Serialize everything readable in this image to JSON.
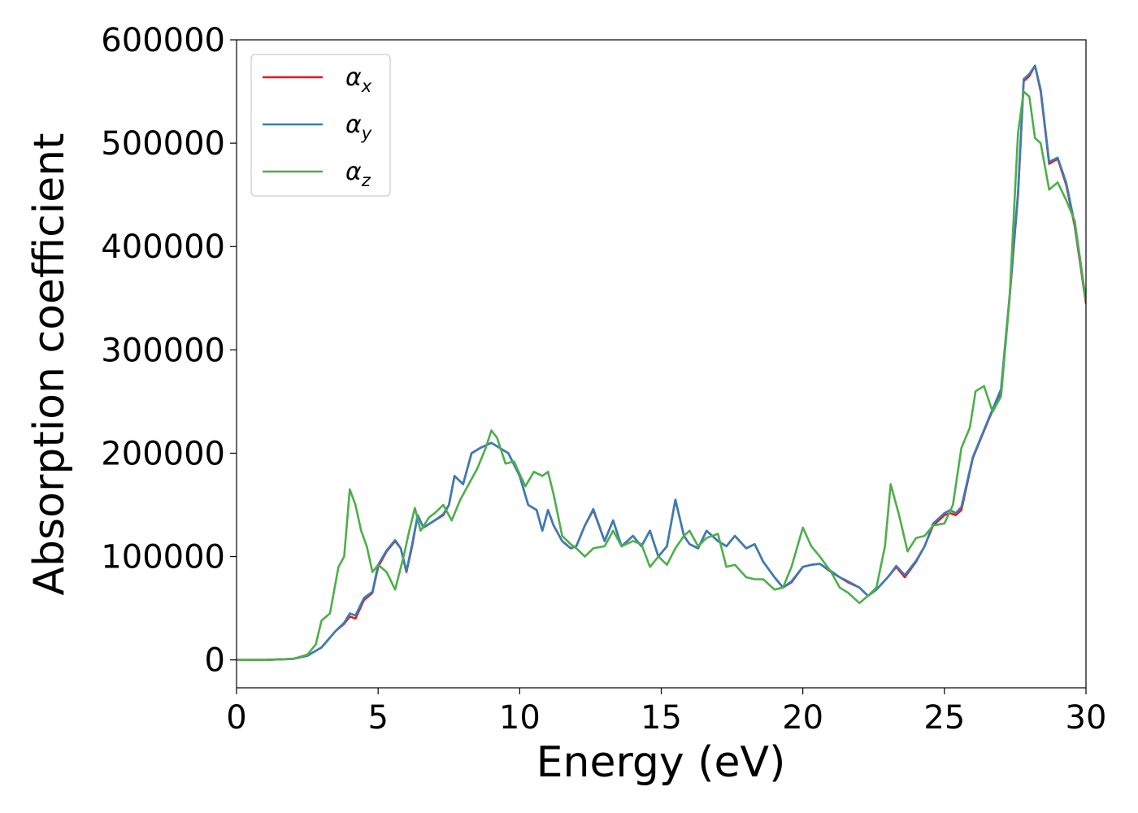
{
  "chart_data": {
    "type": "line",
    "title": "",
    "xlabel": "Energy (eV)",
    "ylabel": "Absorption coefficient",
    "xlim": [
      0,
      30
    ],
    "ylim": [
      -27000,
      600000
    ],
    "xticks": [
      0,
      5,
      10,
      15,
      20,
      25,
      30
    ],
    "yticks": [
      0,
      100000,
      200000,
      300000,
      400000,
      500000,
      600000
    ],
    "grid": false,
    "legend_position": "top-left",
    "series": [
      {
        "name": "α",
        "subscript": "x",
        "color": "#e41a1c",
        "x": [
          0,
          1,
          2,
          2.5,
          3,
          3.5,
          3.8,
          4.0,
          4.2,
          4.5,
          4.8,
          5.0,
          5.3,
          5.6,
          5.8,
          6.0,
          6.2,
          6.4,
          6.6,
          7.0,
          7.3,
          7.5,
          7.7,
          8.0,
          8.3,
          8.6,
          9.0,
          9.3,
          9.6,
          10.0,
          10.3,
          10.6,
          10.8,
          11.0,
          11.2,
          11.5,
          11.8,
          12.0,
          12.3,
          12.6,
          13.0,
          13.3,
          13.6,
          14.0,
          14.3,
          14.6,
          14.9,
          15.2,
          15.5,
          15.8,
          16.0,
          16.3,
          16.6,
          17.0,
          17.3,
          17.6,
          18.0,
          18.3,
          18.6,
          19.0,
          19.3,
          19.6,
          20.0,
          20.3,
          20.6,
          21.0,
          21.3,
          21.6,
          22.0,
          22.3,
          22.6,
          23.0,
          23.3,
          23.6,
          24.0,
          24.3,
          24.6,
          25.0,
          25.2,
          25.4,
          25.6,
          25.8,
          26.0,
          26.3,
          26.6,
          27.0,
          27.3,
          27.6,
          27.8,
          28.0,
          28.2,
          28.4,
          28.7,
          29.0,
          29.3,
          29.6,
          30.0
        ],
        "y": [
          0,
          0,
          1000,
          4000,
          12000,
          28000,
          35000,
          42000,
          40000,
          58000,
          65000,
          90000,
          105000,
          115000,
          108000,
          85000,
          110000,
          140000,
          128000,
          135000,
          140000,
          150000,
          178000,
          170000,
          200000,
          205000,
          210000,
          205000,
          200000,
          178000,
          150000,
          145000,
          125000,
          145000,
          130000,
          115000,
          108000,
          110000,
          130000,
          145000,
          115000,
          135000,
          110000,
          120000,
          110000,
          125000,
          100000,
          110000,
          155000,
          120000,
          112000,
          108000,
          125000,
          115000,
          110000,
          120000,
          108000,
          112000,
          95000,
          80000,
          70000,
          75000,
          90000,
          92000,
          93000,
          85000,
          80000,
          75000,
          70000,
          62000,
          68000,
          80000,
          90000,
          80000,
          95000,
          110000,
          130000,
          140000,
          142000,
          140000,
          145000,
          170000,
          195000,
          215000,
          235000,
          260000,
          350000,
          450000,
          560000,
          565000,
          575000,
          550000,
          480000,
          485000,
          460000,
          420000,
          345000
        ]
      },
      {
        "name": "α",
        "subscript": "y",
        "color": "#377eb8",
        "x": [
          0,
          1,
          2,
          2.5,
          3,
          3.5,
          3.8,
          4.0,
          4.2,
          4.5,
          4.8,
          5.0,
          5.3,
          5.6,
          5.8,
          6.0,
          6.2,
          6.4,
          6.6,
          7.0,
          7.3,
          7.5,
          7.7,
          8.0,
          8.3,
          8.6,
          9.0,
          9.3,
          9.6,
          10.0,
          10.3,
          10.6,
          10.8,
          11.0,
          11.2,
          11.5,
          11.8,
          12.0,
          12.3,
          12.6,
          13.0,
          13.3,
          13.6,
          14.0,
          14.3,
          14.6,
          14.9,
          15.2,
          15.5,
          15.8,
          16.0,
          16.3,
          16.6,
          17.0,
          17.3,
          17.6,
          18.0,
          18.3,
          18.6,
          19.0,
          19.3,
          19.6,
          20.0,
          20.3,
          20.6,
          21.0,
          21.3,
          21.6,
          22.0,
          22.3,
          22.6,
          23.0,
          23.3,
          23.6,
          24.0,
          24.3,
          24.6,
          25.0,
          25.2,
          25.4,
          25.6,
          25.8,
          26.0,
          26.3,
          26.6,
          27.0,
          27.3,
          27.6,
          27.8,
          28.0,
          28.2,
          28.4,
          28.7,
          29.0,
          29.3,
          29.6,
          30.0
        ],
        "y": [
          0,
          0,
          1000,
          4000,
          12000,
          28000,
          36000,
          45000,
          43000,
          60000,
          66000,
          92000,
          106000,
          116000,
          108000,
          86000,
          112000,
          140000,
          128000,
          135000,
          141000,
          150000,
          178000,
          170000,
          200000,
          205000,
          210000,
          205000,
          200000,
          178000,
          150000,
          145000,
          125000,
          145000,
          130000,
          115000,
          108000,
          110000,
          130000,
          146000,
          115000,
          135000,
          110000,
          120000,
          110000,
          125000,
          100000,
          110000,
          155000,
          120000,
          112000,
          108000,
          125000,
          115000,
          110000,
          120000,
          108000,
          112000,
          95000,
          80000,
          70000,
          76000,
          90000,
          92000,
          93000,
          86000,
          80000,
          76000,
          70000,
          62000,
          68000,
          80000,
          91000,
          82000,
          96000,
          110000,
          132000,
          142000,
          145000,
          142000,
          148000,
          172000,
          196000,
          216000,
          236000,
          262000,
          352000,
          452000,
          562000,
          567000,
          575000,
          552000,
          482000,
          486000,
          462000,
          422000,
          347000
        ]
      },
      {
        "name": "α",
        "subscript": "z",
        "color": "#4daf4a",
        "x": [
          0,
          1,
          2,
          2.5,
          2.8,
          3.0,
          3.3,
          3.6,
          3.8,
          4.0,
          4.2,
          4.4,
          4.6,
          4.8,
          5.0,
          5.3,
          5.6,
          5.9,
          6.1,
          6.3,
          6.5,
          6.8,
          7.0,
          7.3,
          7.6,
          7.9,
          8.2,
          8.5,
          8.8,
          9.0,
          9.2,
          9.5,
          9.8,
          10.0,
          10.2,
          10.5,
          10.8,
          11.0,
          11.2,
          11.5,
          11.8,
          12.0,
          12.3,
          12.6,
          13.0,
          13.3,
          13.6,
          14.0,
          14.3,
          14.6,
          14.9,
          15.2,
          15.5,
          15.8,
          16.0,
          16.3,
          16.6,
          17.0,
          17.3,
          17.6,
          18.0,
          18.3,
          18.6,
          19.0,
          19.3,
          19.6,
          20.0,
          20.3,
          20.6,
          21.0,
          21.3,
          21.6,
          22.0,
          22.3,
          22.6,
          22.9,
          23.1,
          23.4,
          23.7,
          24.0,
          24.3,
          24.6,
          25.0,
          25.3,
          25.6,
          25.9,
          26.1,
          26.4,
          26.7,
          27.0,
          27.3,
          27.6,
          27.8,
          28.0,
          28.2,
          28.4,
          28.7,
          29.0,
          29.3,
          29.6,
          30.0
        ],
        "y": [
          0,
          0,
          1000,
          5000,
          15000,
          38000,
          45000,
          90000,
          100000,
          165000,
          150000,
          125000,
          110000,
          85000,
          92000,
          85000,
          68000,
          100000,
          125000,
          147000,
          125000,
          138000,
          142000,
          150000,
          135000,
          155000,
          170000,
          185000,
          205000,
          222000,
          215000,
          190000,
          192000,
          180000,
          168000,
          182000,
          178000,
          182000,
          160000,
          120000,
          112000,
          108000,
          100000,
          108000,
          110000,
          125000,
          110000,
          115000,
          112000,
          90000,
          100000,
          92000,
          108000,
          120000,
          125000,
          110000,
          118000,
          122000,
          90000,
          92000,
          80000,
          78000,
          78000,
          68000,
          70000,
          90000,
          128000,
          110000,
          100000,
          85000,
          70000,
          65000,
          55000,
          62000,
          70000,
          110000,
          170000,
          140000,
          105000,
          118000,
          120000,
          130000,
          132000,
          150000,
          205000,
          225000,
          260000,
          265000,
          240000,
          255000,
          350000,
          510000,
          550000,
          545000,
          505000,
          500000,
          455000,
          462000,
          445000,
          425000,
          348000
        ]
      }
    ]
  }
}
